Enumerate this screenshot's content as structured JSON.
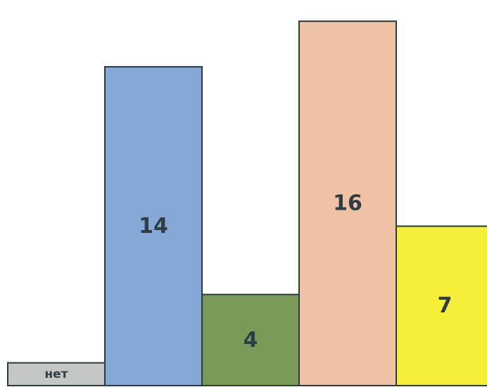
{
  "chart_data": {
    "type": "bar",
    "categories": [
      "",
      "",
      "",
      "",
      ""
    ],
    "values": [
      1,
      14,
      4,
      16,
      7
    ],
    "data_labels": [
      "нет",
      "14",
      "4",
      "16",
      "7"
    ],
    "colors": [
      "#c4c7c6",
      "#86a8d6",
      "#7a9a5a",
      "#efc2a6",
      "#f6ef3a"
    ],
    "ylim": [
      0,
      16.5
    ],
    "grid": false,
    "legend": "none",
    "title": "",
    "xlabel": "",
    "ylabel": ""
  }
}
